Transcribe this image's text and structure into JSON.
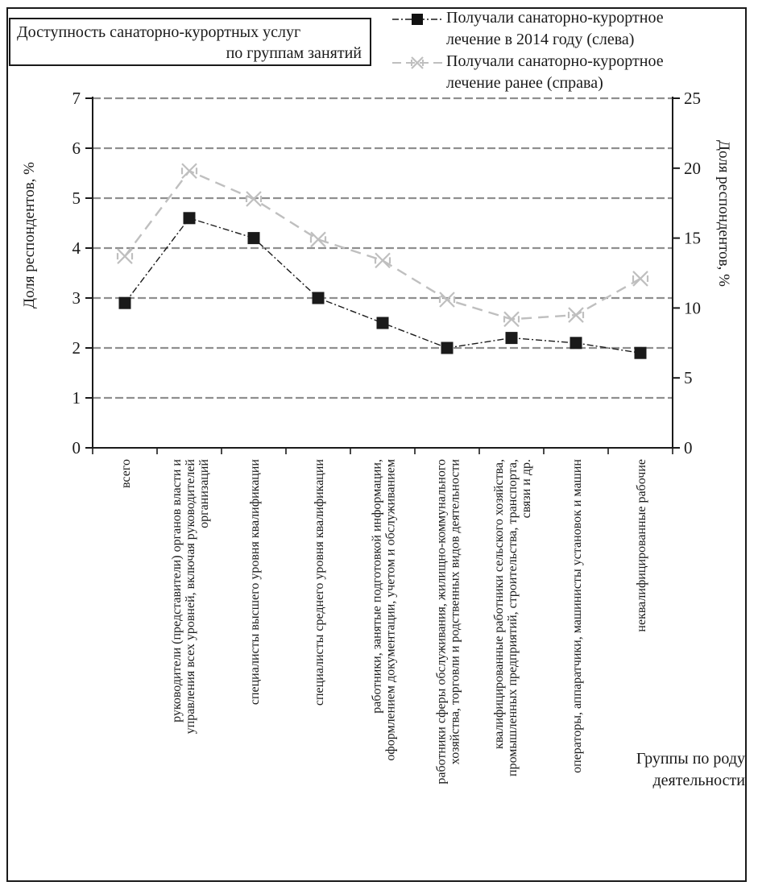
{
  "title": {
    "line1": "Доступность санаторно-курортных услуг",
    "line2": "по группам занятий"
  },
  "legend": {
    "items": [
      {
        "line1": "Получали санаторно-курортное",
        "line2": "лечение в 2014 году (слева)",
        "marker": "black-square-on-dash-dot-line",
        "color": "#1a1a1a"
      },
      {
        "line1": "Получали санаторно-курортное",
        "line2": "лечение ранее (справа)",
        "marker": "gray-x-on-dashed-line",
        "color": "#bfbfbf"
      }
    ]
  },
  "chart_data": {
    "type": "line",
    "title": "Доступность санаторно-курортных услуг по группам занятий",
    "grid": true,
    "legend_position": "top-right",
    "categories": [
      {
        "label": "всего",
        "lines": [
          "всего"
        ]
      },
      {
        "label": "руководители (представители) органов власти и управления всех уровней, включая руководителей организаций",
        "lines": [
          "руководители (представители) органов власти и",
          "управления всех уровней, включая руководителей",
          "организаций"
        ]
      },
      {
        "label": "специалисты высшего уровня квалификации",
        "lines": [
          "специалисты высшего уровня квалификации"
        ]
      },
      {
        "label": "специалисты среднего уровня квалификации",
        "lines": [
          "специалисты среднего уровня квалификации"
        ]
      },
      {
        "label": "работники, занятые подготовкой информации, оформлением документации, учетом и обслуживанием",
        "lines": [
          "работники, занятые подготовкой информации,",
          "оформлением документации, учетом и обслуживанием"
        ]
      },
      {
        "label": "работники сферы обслуживания, жилищно-коммунального хозяйства, торговли и родственных видов деятельности",
        "lines": [
          "работники сферы обслуживания, жилищно-коммунального",
          "хозяйства, торговли и родственных видов деятельности"
        ]
      },
      {
        "label": "квалифицированные работники сельского хозяйства, промышленных предприятий, строительства, транспорта, связи и др.",
        "lines": [
          "квалифицированные работники сельского хозяйства,",
          "промышленных предприятий, строительства, транспорта,",
          "связи и др."
        ]
      },
      {
        "label": "операторы, аппаратчики, машинисты установок и машин",
        "lines": [
          "операторы, аппаратчики, машинисты установок и машин"
        ]
      },
      {
        "label": "неквалифицированные рабочие",
        "lines": [
          "неквалифицированные рабочие"
        ]
      }
    ],
    "series": [
      {
        "name": "Получали санаторно-курортное лечение в 2014 году (слева)",
        "axis": "left",
        "color": "#1a1a1a",
        "marker": "square",
        "line_style": "dash-dot",
        "values": [
          2.9,
          4.6,
          4.2,
          3.0,
          2.5,
          2.0,
          2.2,
          2.1,
          1.9
        ]
      },
      {
        "name": "Получали санаторно-курортное лечение ранее (справа)",
        "axis": "right",
        "color": "#bfbfbf",
        "marker": "x",
        "line_style": "dashed",
        "values": [
          13.7,
          19.8,
          17.8,
          14.9,
          13.4,
          10.6,
          9.2,
          9.5,
          12.1
        ]
      }
    ],
    "left_axis": {
      "label": "Доля респондентов, %",
      "min": 0,
      "max": 7,
      "ticks": [
        0,
        1,
        2,
        3,
        4,
        5,
        6,
        7
      ]
    },
    "right_axis": {
      "label": "Доля респондентов, %",
      "min": 0,
      "max": 25,
      "ticks": [
        0,
        5,
        10,
        15,
        20,
        25
      ]
    },
    "xlabel_lines": [
      "Группы по роду",
      "деятельности"
    ]
  }
}
